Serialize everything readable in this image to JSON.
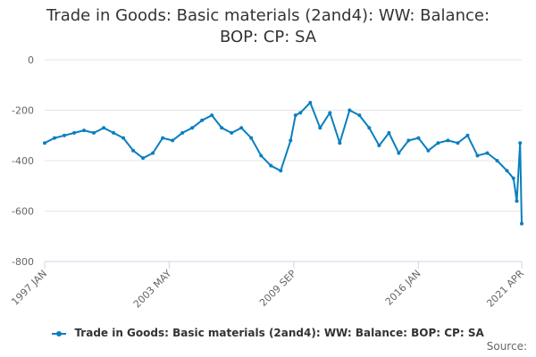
{
  "chart_data": {
    "type": "line",
    "title_lines": [
      "Trade in Goods: Basic materials (2and4): WW: Balance:",
      "BOP: CP: SA"
    ],
    "title": "Trade in Goods: Basic materials (2and4): WW: Balance: BOP: CP: SA",
    "xlabel": "",
    "ylabel": "",
    "ylim": [
      -800,
      0
    ],
    "yticks": [
      0,
      -200,
      -400,
      -600,
      -800
    ],
    "x_range": [
      1997.0,
      2021.25
    ],
    "x_tick_values": [
      1997.0,
      2003.33,
      2009.67,
      2016.0,
      2021.25
    ],
    "x_tick_labels": [
      "1997 JAN",
      "2003 MAY",
      "2009 SEP",
      "2016 JAN",
      "2021 APR"
    ],
    "grid": true,
    "legend_position": "bottom",
    "series": [
      {
        "name": "Trade in Goods: Basic materials (2and4): WW: Balance: BOP: CP: SA",
        "color": "#0a7fbf",
        "x": [
          1997.0,
          1997.5,
          1998.0,
          1998.5,
          1999.0,
          1999.5,
          2000.0,
          2000.5,
          2001.0,
          2001.5,
          2002.0,
          2002.5,
          2003.0,
          2003.5,
          2004.0,
          2004.5,
          2005.0,
          2005.5,
          2006.0,
          2006.5,
          2007.0,
          2007.5,
          2008.0,
          2008.5,
          2009.0,
          2009.5,
          2009.75,
          2010.0,
          2010.5,
          2011.0,
          2011.5,
          2012.0,
          2012.5,
          2013.0,
          2013.5,
          2014.0,
          2014.5,
          2015.0,
          2015.5,
          2016.0,
          2016.5,
          2017.0,
          2017.5,
          2018.0,
          2018.5,
          2019.0,
          2019.5,
          2020.0,
          2020.5,
          2020.83,
          2021.0,
          2021.17,
          2021.25
        ],
        "values": [
          -330,
          -310,
          -300,
          -290,
          -280,
          -290,
          -270,
          -290,
          -310,
          -360,
          -390,
          -370,
          -310,
          -320,
          -290,
          -270,
          -240,
          -220,
          -270,
          -290,
          -270,
          -310,
          -380,
          -420,
          -440,
          -320,
          -220,
          -210,
          -170,
          -270,
          -210,
          -330,
          -200,
          -220,
          -270,
          -340,
          -290,
          -370,
          -320,
          -310,
          -360,
          -330,
          -320,
          -330,
          -300,
          -380,
          -370,
          -400,
          -440,
          -470,
          -560,
          -330,
          -650
        ]
      }
    ]
  },
  "legend": {
    "label": "Trade in Goods: Basic materials (2and4): WW: Balance: BOP: CP: SA"
  },
  "source_label": "Source:"
}
